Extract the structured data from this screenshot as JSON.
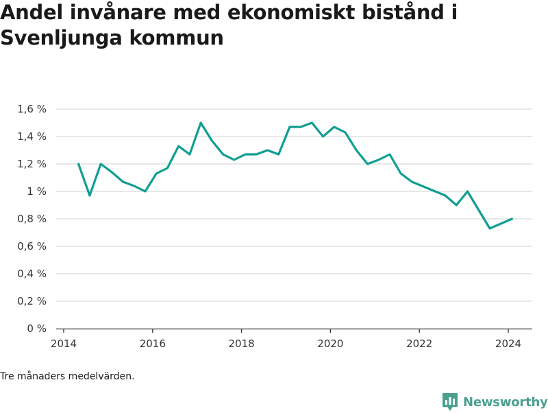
{
  "title": "Andel invånare med ekonomiskt bistånd i Svenljunga kommun",
  "footnote": "Tre månaders medelvärden.",
  "brand": {
    "name": "Newsworthy",
    "icon": "newsworthy-logo-icon",
    "color": "#4aa08f"
  },
  "colors": {
    "line": "#0f9e92",
    "grid": "#d9d9d9",
    "axis": "#333333"
  },
  "chart_data": {
    "type": "line",
    "title": "Andel invånare med ekonomiskt bistånd i Svenljunga kommun",
    "xlabel": "",
    "ylabel": "",
    "x_ticks": [
      "2014",
      "2016",
      "2018",
      "2020",
      "2022",
      "2024"
    ],
    "y_ticks": [
      "0 %",
      "0,2 %",
      "0,4 %",
      "0,6 %",
      "0,8 %",
      "1 %",
      "1,2 %",
      "1,4 %",
      "1,6 %"
    ],
    "xlim": [
      "2014-01",
      "2024-06"
    ],
    "ylim": [
      0,
      1.6
    ],
    "grid": true,
    "legend": "none",
    "series": [
      {
        "x": [
          "2014-05",
          "2014-08",
          "2014-11",
          "2015-02",
          "2015-05",
          "2015-08",
          "2015-11",
          "2016-02",
          "2016-05",
          "2016-08",
          "2016-11",
          "2017-02",
          "2017-05",
          "2017-08",
          "2017-11",
          "2018-02",
          "2018-05",
          "2018-08",
          "2018-11",
          "2019-02",
          "2019-05",
          "2019-08",
          "2019-11",
          "2020-02",
          "2020-05",
          "2020-08",
          "2020-11",
          "2021-02",
          "2021-05",
          "2021-08",
          "2021-11",
          "2022-08",
          "2022-11",
          "2023-02",
          "2023-08",
          "2024-02"
        ],
        "values": [
          1.2,
          0.97,
          1.2,
          1.14,
          1.07,
          1.04,
          1.0,
          1.13,
          1.17,
          1.33,
          1.27,
          1.5,
          1.37,
          1.27,
          1.23,
          1.27,
          1.27,
          1.3,
          1.27,
          1.47,
          1.47,
          1.5,
          1.4,
          1.47,
          1.43,
          1.3,
          1.2,
          1.23,
          1.27,
          1.13,
          1.07,
          0.97,
          0.9,
          1.0,
          0.73,
          0.8
        ]
      }
    ]
  }
}
